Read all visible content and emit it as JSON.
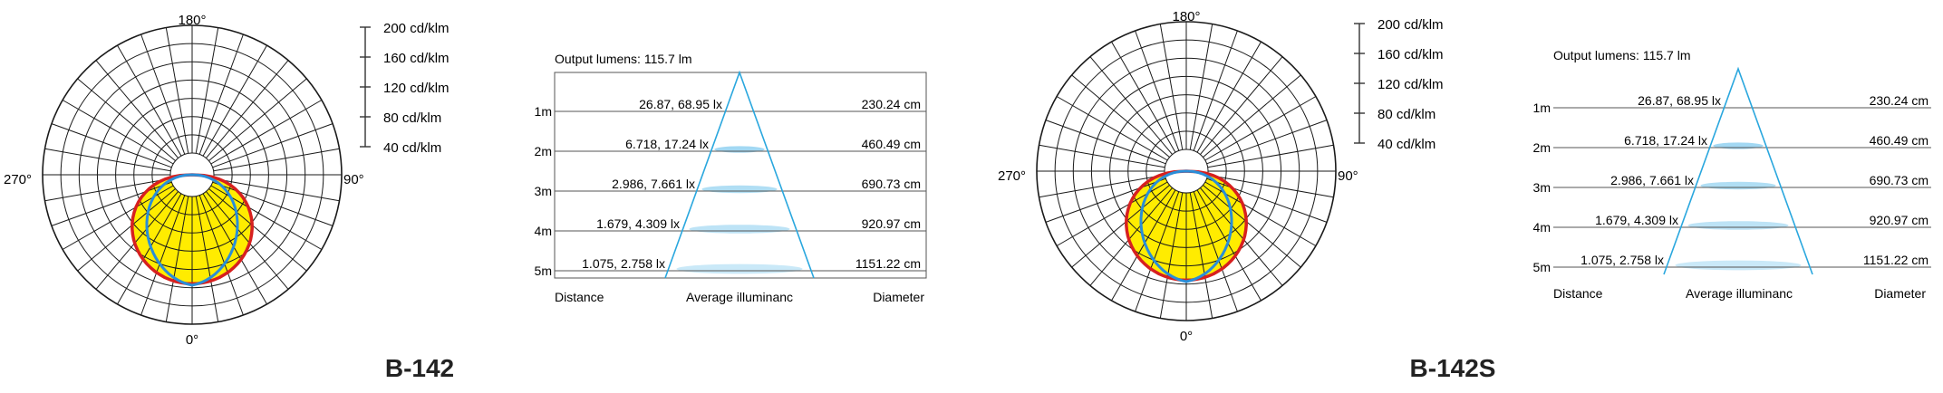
{
  "panels": [
    {
      "model": "B-142",
      "polar": {
        "angle_labels": {
          "top": "180°",
          "right": "90°",
          "bottom": "0°",
          "left": "270°"
        },
        "scale_labels": [
          "200 cd/klm",
          "160 cd/klm",
          "120 cd/klm",
          "80 cd/klm",
          "40 cd/klm"
        ],
        "colors": {
          "fill": "#ffec00",
          "red_curve": "#d7201f",
          "blue_curve": "#2a8ed8",
          "grid": "#1a1a1a"
        }
      },
      "illuminance": {
        "output_lumens": "Output lumens: 115.7 lm",
        "rows": [
          {
            "distance": "1m",
            "illuminance": "26.87, 68.95 lx",
            "diameter": "230.24 cm"
          },
          {
            "distance": "2m",
            "illuminance": "6.718, 17.24 lx",
            "diameter": "460.49 cm"
          },
          {
            "distance": "3m",
            "illuminance": "2.986, 7.661 lx",
            "diameter": "690.73 cm"
          },
          {
            "distance": "4m",
            "illuminance": "1.679, 4.309 lx",
            "diameter": "920.97 cm"
          },
          {
            "distance": "5m",
            "illuminance": "1.075, 2.758 lx",
            "diameter": "1151.22 cm"
          }
        ],
        "footer": {
          "distance": "Distance",
          "illuminance": "Average illuminanc",
          "diameter": "Diameter"
        },
        "colors": {
          "cone": "#2aa7de",
          "spot": "#8fd0f0"
        }
      }
    },
    {
      "model": "B-142S",
      "polar": {
        "angle_labels": {
          "top": "180°",
          "right": "90°",
          "bottom": "0°",
          "left": "270°"
        },
        "scale_labels": [
          "200 cd/klm",
          "160 cd/klm",
          "120 cd/klm",
          "80 cd/klm",
          "40 cd/klm"
        ],
        "colors": {
          "fill": "#ffec00",
          "red_curve": "#d7201f",
          "blue_curve": "#2a8ed8",
          "grid": "#1a1a1a"
        }
      },
      "illuminance": {
        "output_lumens": "Output lumens: 115.7 lm",
        "rows": [
          {
            "distance": "1m",
            "illuminance": "26.87, 68.95 lx",
            "diameter": "230.24 cm"
          },
          {
            "distance": "2m",
            "illuminance": "6.718, 17.24 lx",
            "diameter": "460.49 cm"
          },
          {
            "distance": "3m",
            "illuminance": "2.986, 7.661 lx",
            "diameter": "690.73 cm"
          },
          {
            "distance": "4m",
            "illuminance": "1.679, 4.309 lx",
            "diameter": "920.97 cm"
          },
          {
            "distance": "5m",
            "illuminance": "1.075, 2.758 lx",
            "diameter": "1151.22 cm"
          }
        ],
        "footer": {
          "distance": "Distance",
          "illuminance": "Average illuminanc",
          "diameter": "Diameter"
        },
        "colors": {
          "cone": "#2aa7de",
          "spot": "#8fd0f0"
        }
      }
    }
  ]
}
